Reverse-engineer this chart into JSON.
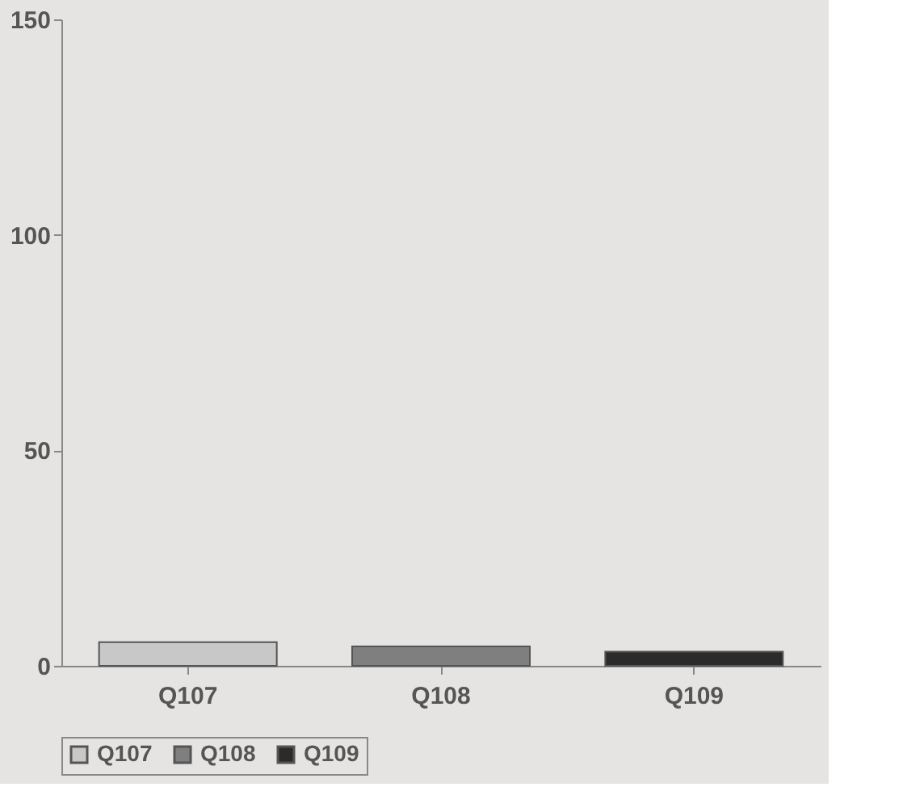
{
  "chart_data": {
    "type": "bar",
    "categories": [
      "Q107",
      "Q108",
      "Q109"
    ],
    "series": [
      {
        "name": "Q107",
        "color": "#c8c8c8",
        "values": [
          5.5,
          null,
          null
        ]
      },
      {
        "name": "Q108",
        "color": "#7f7f7f",
        "values": [
          null,
          4.5,
          null
        ]
      },
      {
        "name": "Q109",
        "color": "#2b2b2b",
        "values": [
          null,
          null,
          3.3
        ]
      }
    ],
    "ylim": [
      0,
      150
    ],
    "yticks": [
      0,
      50,
      100,
      150
    ],
    "grid": false,
    "legend": "bottom"
  }
}
